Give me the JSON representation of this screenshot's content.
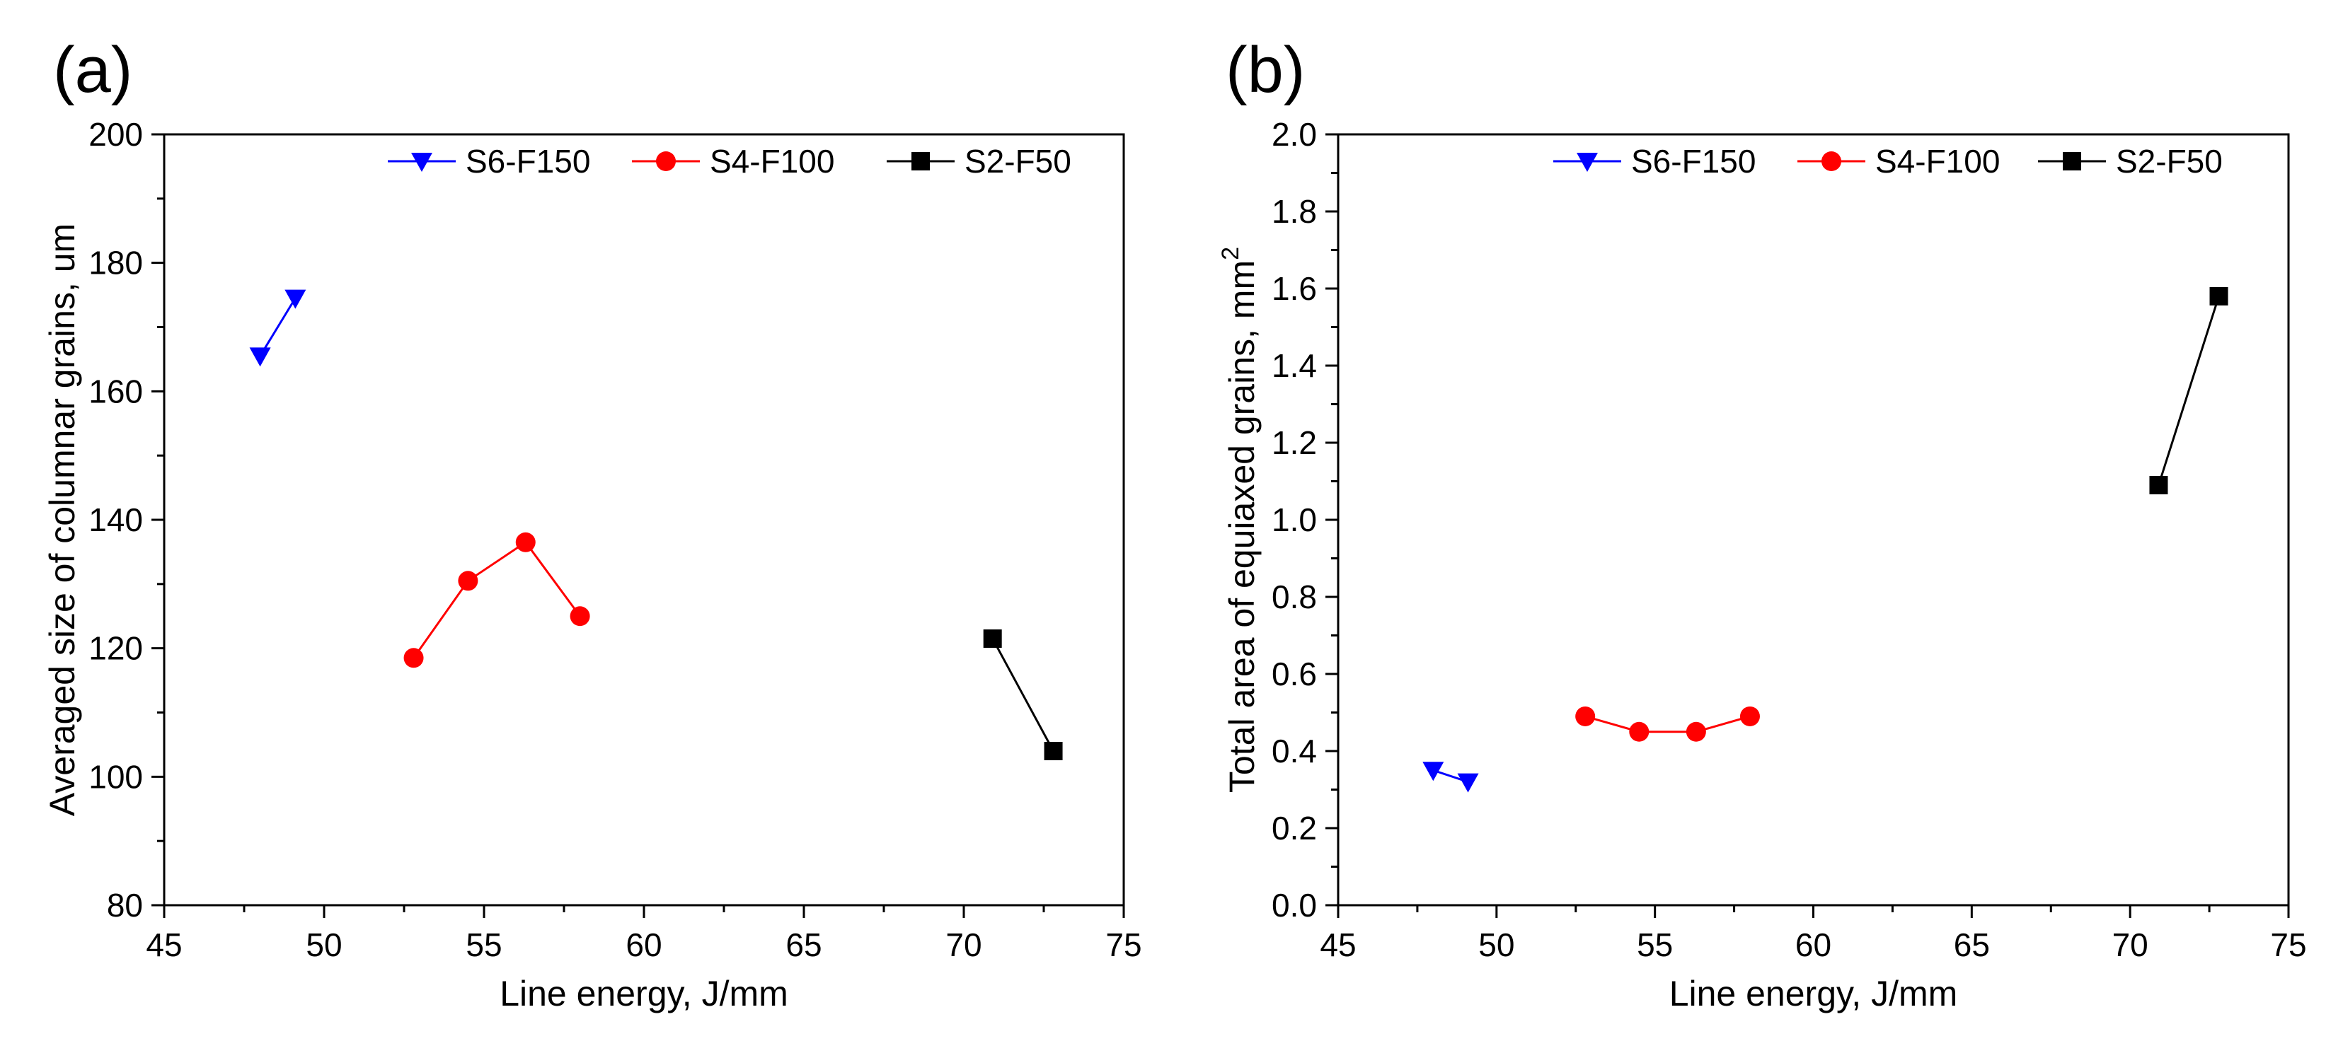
{
  "figure_labels": [
    "(a)",
    "(b)"
  ],
  "chart_data": [
    {
      "type": "line",
      "panel_label": "(a)",
      "title": "",
      "xlabel": "Line energy, J/mm",
      "ylabel": "Averaged size of columnar grains, um",
      "ylabel_superscript": "",
      "xlim": [
        45,
        75
      ],
      "ylim": [
        80,
        200
      ],
      "xticks": [
        45,
        50,
        55,
        60,
        65,
        70,
        75
      ],
      "yticks": [
        80,
        100,
        120,
        140,
        160,
        180,
        200
      ],
      "xtick_labels": [
        "45",
        "50",
        "55",
        "60",
        "65",
        "70",
        "75"
      ],
      "ytick_labels": [
        "80",
        "100",
        "120",
        "140",
        "160",
        "180",
        "200"
      ],
      "grid": false,
      "legend_position": "top-right",
      "series": [
        {
          "name": "S6-F150",
          "color": "#0000ff",
          "marker": "triangle-down",
          "x": [
            48.0,
            49.1
          ],
          "y": [
            165.5,
            174.5
          ]
        },
        {
          "name": "S4-F100",
          "color": "#ff0000",
          "marker": "circle",
          "x": [
            52.8,
            54.5,
            56.3,
            58.0
          ],
          "y": [
            118.5,
            130.5,
            136.5,
            125.0
          ]
        },
        {
          "name": "S2-F50",
          "color": "#000000",
          "marker": "square",
          "x": [
            70.9,
            72.8
          ],
          "y": [
            121.5,
            104.0
          ]
        }
      ]
    },
    {
      "type": "line",
      "panel_label": "(b)",
      "title": "",
      "xlabel": "Line energy, J/mm",
      "ylabel": "Total area of equiaxed grains, mm",
      "ylabel_superscript": "2",
      "xlim": [
        45,
        75
      ],
      "ylim": [
        0.0,
        2.0
      ],
      "xticks": [
        45,
        50,
        55,
        60,
        65,
        70,
        75
      ],
      "yticks": [
        0.0,
        0.2,
        0.4,
        0.6,
        0.8,
        1.0,
        1.2,
        1.4,
        1.6,
        1.8,
        2.0
      ],
      "xtick_labels": [
        "45",
        "50",
        "55",
        "60",
        "65",
        "70",
        "75"
      ],
      "ytick_labels": [
        "0.0",
        "0.2",
        "0.4",
        "0.6",
        "0.8",
        "1.0",
        "1.2",
        "1.4",
        "1.6",
        "1.8",
        "2.0"
      ],
      "grid": false,
      "legend_position": "top-right",
      "series": [
        {
          "name": "S6-F150",
          "color": "#0000ff",
          "marker": "triangle-down",
          "x": [
            48.0,
            49.1
          ],
          "y": [
            0.35,
            0.32
          ]
        },
        {
          "name": "S4-F100",
          "color": "#ff0000",
          "marker": "circle",
          "x": [
            52.8,
            54.5,
            56.3,
            58.0
          ],
          "y": [
            0.49,
            0.45,
            0.45,
            0.49
          ]
        },
        {
          "name": "S2-F50",
          "color": "#000000",
          "marker": "square",
          "x": [
            70.9,
            72.8
          ],
          "y": [
            1.09,
            1.58
          ]
        }
      ]
    }
  ]
}
